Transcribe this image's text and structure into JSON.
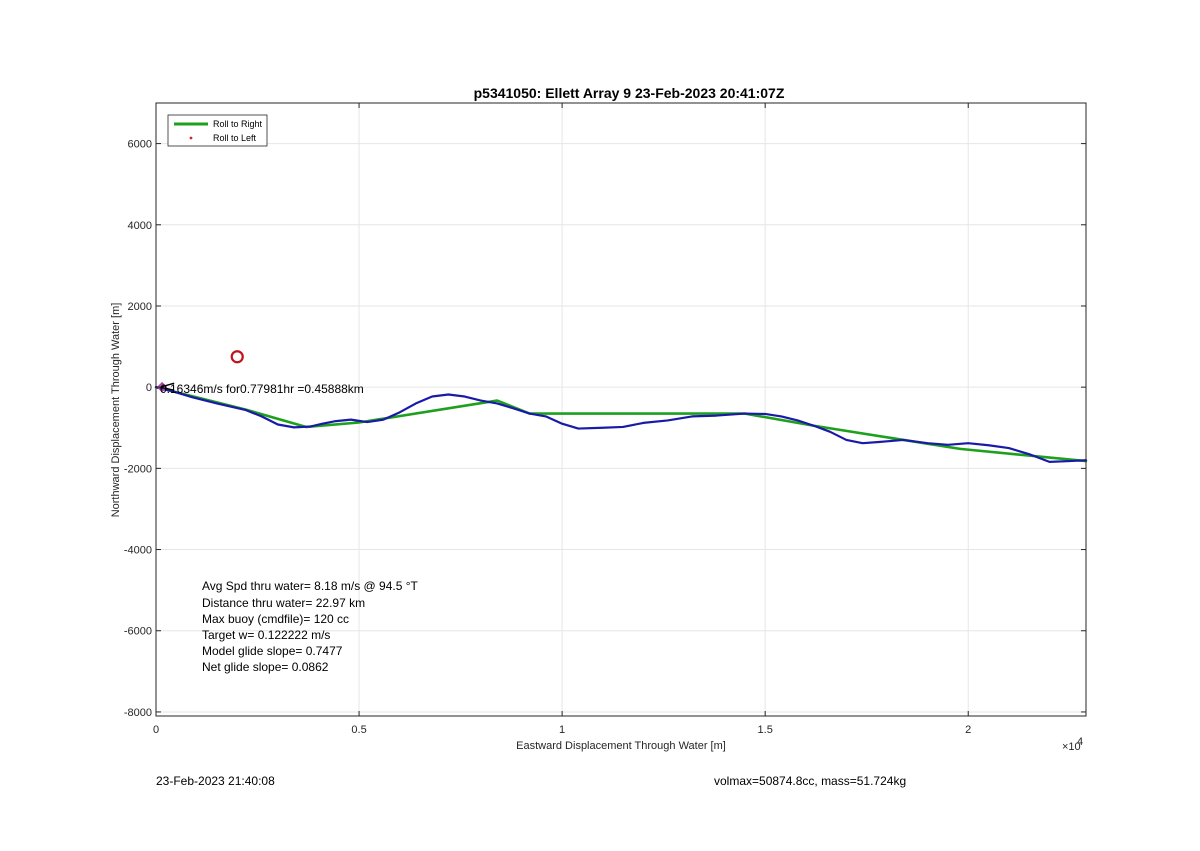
{
  "chart_data": {
    "type": "line",
    "title": "p5341050: Ellett Array 9 23-Feb-2023 20:41:07Z",
    "xlabel": "Eastward Displacement Through Water [m]",
    "ylabel": "Northward Displacement Through Water [m]",
    "xlim": [
      0,
      22900
    ],
    "ylim": [
      -8100,
      7000
    ],
    "x_exponent_label": "×10",
    "x_exponent_power": "4",
    "x_ticks": [
      0,
      5000,
      10000,
      15000,
      20000
    ],
    "x_tick_labels": [
      "0",
      "0.5",
      "1",
      "1.5",
      "2"
    ],
    "y_ticks": [
      -8000,
      -6000,
      -4000,
      -2000,
      0,
      2000,
      4000,
      6000
    ],
    "y_tick_labels": [
      "-8000",
      "-6000",
      "-4000",
      "-2000",
      "0",
      "2000",
      "4000",
      "6000"
    ],
    "grid": true,
    "legend": {
      "position": "top-left",
      "entries": [
        {
          "name": "Roll to Right",
          "color": "#1ea01e",
          "style": "line"
        },
        {
          "name": "Roll to Left",
          "color": "#d62728",
          "style": "dot"
        }
      ]
    },
    "series": [
      {
        "name": "Roll to Right",
        "color": "#1ea01e",
        "x": [
          0,
          2200,
          3700,
          5000,
          8400,
          9200,
          14500,
          16200,
          19800,
          22900
        ],
        "y": [
          0,
          -550,
          -980,
          -870,
          -330,
          -650,
          -650,
          -950,
          -1520,
          -1820
        ]
      },
      {
        "color": "#1a1a1a",
        "x": [
          0,
          400,
          900,
          1500,
          2200,
          2600,
          3000,
          3400,
          3800,
          4100,
          4400,
          4800,
          5200,
          5600,
          6000,
          6400,
          6800,
          7200,
          7600,
          8000,
          8400,
          8800,
          9200,
          9600,
          10000,
          10400,
          11000,
          11500,
          12000,
          12600,
          13200,
          13800,
          14500,
          15000,
          15400,
          15800,
          16200,
          16600,
          17000,
          17400,
          17800,
          18400,
          19000,
          19500,
          20000,
          20500,
          21000,
          21500,
          22000,
          22500,
          22900
        ],
        "y": [
          0,
          -100,
          -250,
          -400,
          -560,
          -720,
          -920,
          -990,
          -970,
          -900,
          -840,
          -800,
          -860,
          -800,
          -620,
          -400,
          -230,
          -180,
          -230,
          -330,
          -400,
          -520,
          -650,
          -720,
          -900,
          -1020,
          -1000,
          -980,
          -880,
          -820,
          -720,
          -700,
          -650,
          -660,
          -720,
          -820,
          -950,
          -1100,
          -1300,
          -1380,
          -1350,
          -1300,
          -1380,
          -1420,
          -1380,
          -1430,
          -1500,
          -1650,
          -1840,
          -1820,
          -1800
        ]
      },
      {
        "color": "#1a1aa8",
        "x": [
          0,
          400,
          900,
          1500,
          2200,
          2600,
          3000,
          3400,
          3800,
          4100,
          4400,
          4800,
          5200,
          5600,
          6000,
          6400,
          6800,
          7200,
          7600,
          8000,
          8400,
          8800,
          9200,
          9600,
          10000,
          10400,
          11000,
          11500,
          12000,
          12600,
          13200,
          13800,
          14500,
          15000,
          15400,
          15800,
          16200,
          16600,
          17000,
          17400,
          17800,
          18400,
          19000,
          19500,
          20000,
          20500,
          21000,
          21500,
          22000,
          22500,
          22900
        ],
        "y": [
          0,
          -100,
          -250,
          -400,
          -560,
          -720,
          -920,
          -990,
          -970,
          -900,
          -840,
          -800,
          -860,
          -800,
          -620,
          -400,
          -230,
          -180,
          -230,
          -330,
          -400,
          -520,
          -650,
          -720,
          -900,
          -1020,
          -1000,
          -980,
          -880,
          -820,
          -720,
          -700,
          -650,
          -660,
          -720,
          -820,
          -950,
          -1100,
          -1300,
          -1380,
          -1350,
          -1300,
          -1380,
          -1420,
          -1380,
          -1430,
          -1500,
          -1650,
          -1840,
          -1820,
          -1800
        ]
      }
    ],
    "markers": [
      {
        "type": "circle",
        "x": 2000,
        "y": 750,
        "color": "#c0141e"
      },
      {
        "type": "diamond",
        "x": 150,
        "y": 0,
        "color": "#b03cb0"
      }
    ],
    "annotations": [
      {
        "text": "0.16346m/s for0.77981hr =0.45888km",
        "x": 50,
        "y": 0
      },
      {
        "text": "Avg Spd thru water=  8.18 m/s @  94.5 °T"
      },
      {
        "text": "Distance thru water= 22.97 km"
      },
      {
        "text": "Max buoy (cmdfile)= 120 cc"
      },
      {
        "text": "Target w= 0.122222 m/s"
      },
      {
        "text": "Model glide slope= 0.7477"
      },
      {
        "text": "Net glide slope= 0.0862"
      }
    ]
  },
  "footer": {
    "timestamp": "23-Feb-2023 21:40:08",
    "vol_mass": "volmax=50874.8cc, mass=51.724kg"
  }
}
